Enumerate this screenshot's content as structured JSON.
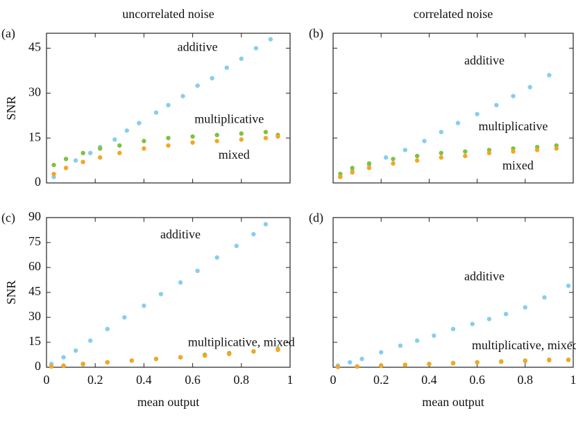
{
  "chart_data": [
    {
      "type": "scatter",
      "label": "(a)",
      "title": "uncorrelated noise",
      "ylabel": "SNR",
      "xlim": [
        0,
        1
      ],
      "ylim": [
        0,
        50
      ],
      "xticks": [
        0,
        0.2,
        0.4,
        0.6,
        0.8,
        1
      ],
      "yticks": [
        0,
        15,
        30,
        45
      ],
      "show_xtick_labels": false,
      "show_ytick_labels": true,
      "series": [
        {
          "name": "additive",
          "color": "#87ceeb",
          "x": [
            0.03,
            0.08,
            0.12,
            0.18,
            0.22,
            0.28,
            0.33,
            0.38,
            0.45,
            0.5,
            0.56,
            0.62,
            0.68,
            0.74,
            0.8,
            0.86,
            0.92
          ],
          "values": [
            2,
            5,
            7.5,
            10,
            12,
            14.5,
            17.5,
            20,
            23.5,
            26,
            29,
            32.5,
            35,
            38.5,
            41.5,
            45,
            48
          ]
        },
        {
          "name": "multiplicative",
          "color": "#7dc242",
          "x": [
            0.03,
            0.08,
            0.15,
            0.22,
            0.3,
            0.4,
            0.5,
            0.6,
            0.7,
            0.8,
            0.9,
            0.95
          ],
          "values": [
            6,
            8,
            10,
            11.5,
            12.5,
            14,
            15,
            15.5,
            16,
            16.5,
            17,
            16
          ]
        },
        {
          "name": "mixed",
          "color": "#f5a623",
          "x": [
            0.03,
            0.08,
            0.15,
            0.22,
            0.3,
            0.4,
            0.5,
            0.6,
            0.7,
            0.8,
            0.9,
            0.95
          ],
          "values": [
            3,
            5,
            7,
            8.5,
            10,
            11.5,
            12.5,
            13.5,
            14,
            14.5,
            15,
            15.5
          ]
        }
      ]
    },
    {
      "type": "scatter",
      "label": "(b)",
      "title": "correlated noise",
      "xlim": [
        0,
        1
      ],
      "ylim": [
        0,
        50
      ],
      "xticks": [
        0,
        0.2,
        0.4,
        0.6,
        0.8,
        1
      ],
      "yticks": [
        0,
        15,
        30,
        45
      ],
      "show_xtick_labels": false,
      "show_ytick_labels": false,
      "series": [
        {
          "name": "additive",
          "color": "#87ceeb",
          "x": [
            0.03,
            0.08,
            0.15,
            0.22,
            0.3,
            0.38,
            0.45,
            0.52,
            0.6,
            0.68,
            0.75,
            0.82,
            0.9
          ],
          "values": [
            2,
            4,
            6,
            8.5,
            11,
            14,
            17,
            20,
            23,
            26,
            29,
            32,
            36
          ]
        },
        {
          "name": "multiplicative",
          "color": "#7dc242",
          "x": [
            0.03,
            0.08,
            0.15,
            0.25,
            0.35,
            0.45,
            0.55,
            0.65,
            0.75,
            0.85,
            0.93
          ],
          "values": [
            3,
            5,
            6.5,
            8,
            9,
            10,
            10.5,
            11,
            11.5,
            12,
            12.5
          ]
        },
        {
          "name": "mixed",
          "color": "#f5a623",
          "x": [
            0.03,
            0.08,
            0.15,
            0.25,
            0.35,
            0.45,
            0.55,
            0.65,
            0.75,
            0.85,
            0.93
          ],
          "values": [
            2,
            3.5,
            5,
            6.5,
            7.5,
            8.5,
            9,
            10,
            10.5,
            11,
            11.5
          ]
        }
      ]
    },
    {
      "type": "scatter",
      "label": "(c)",
      "ylabel": "SNR",
      "xlabel": "mean output",
      "xlim": [
        0,
        1
      ],
      "ylim": [
        0,
        90
      ],
      "xticks": [
        0,
        0.2,
        0.4,
        0.6,
        0.8,
        1
      ],
      "yticks": [
        0,
        15,
        30,
        45,
        60,
        75,
        90
      ],
      "show_xtick_labels": true,
      "show_ytick_labels": true,
      "annotations": [
        "multiplicative, mixed"
      ],
      "series": [
        {
          "name": "additive",
          "color": "#87ceeb",
          "x": [
            0.02,
            0.07,
            0.12,
            0.18,
            0.25,
            0.32,
            0.4,
            0.47,
            0.55,
            0.62,
            0.7,
            0.78,
            0.85,
            0.9
          ],
          "values": [
            2,
            6,
            10,
            16,
            23,
            30,
            37,
            44,
            51,
            58,
            66,
            73,
            80,
            86
          ]
        },
        {
          "color": "#7dc242",
          "x": [
            0.02,
            0.07,
            0.15,
            0.25,
            0.35,
            0.45,
            0.55,
            0.65,
            0.75,
            0.85,
            0.95
          ],
          "values": [
            0.5,
            1,
            2,
            3,
            4,
            5,
            6,
            7.5,
            8.5,
            9.5,
            11
          ]
        },
        {
          "color": "#f5a623",
          "x": [
            0.02,
            0.07,
            0.15,
            0.25,
            0.35,
            0.45,
            0.55,
            0.65,
            0.75,
            0.85,
            0.95
          ],
          "values": [
            0.5,
            1,
            1.8,
            3,
            4,
            5,
            6,
            7,
            8,
            9.5,
            10.5
          ]
        }
      ]
    },
    {
      "type": "scatter",
      "label": "(d)",
      "xlabel": "mean output",
      "xlim": [
        0,
        1
      ],
      "ylim": [
        0,
        90
      ],
      "xticks": [
        0,
        0.2,
        0.4,
        0.6,
        0.8,
        1
      ],
      "yticks": [
        0,
        15,
        30,
        45,
        60,
        75,
        90
      ],
      "show_xtick_labels": true,
      "show_ytick_labels": false,
      "annotations": [
        "multiplicative, mixed"
      ],
      "series": [
        {
          "name": "additive",
          "color": "#87ceeb",
          "x": [
            0.02,
            0.07,
            0.12,
            0.2,
            0.28,
            0.35,
            0.42,
            0.5,
            0.58,
            0.65,
            0.72,
            0.8,
            0.88,
            0.98
          ],
          "values": [
            1,
            3,
            5,
            9,
            13,
            16,
            19,
            23,
            26,
            29,
            32,
            36,
            42,
            49
          ]
        },
        {
          "color": "#7dc242",
          "x": [
            0.02,
            0.1,
            0.2,
            0.3,
            0.4,
            0.5,
            0.6,
            0.7,
            0.8,
            0.9,
            0.98
          ],
          "values": [
            0.2,
            0.5,
            1,
            1.5,
            2,
            2.5,
            3,
            3.5,
            4,
            4.5,
            4.5
          ]
        },
        {
          "color": "#f5a623",
          "x": [
            0.02,
            0.1,
            0.2,
            0.3,
            0.4,
            0.5,
            0.6,
            0.7,
            0.8,
            0.9,
            0.98
          ],
          "values": [
            0.2,
            0.5,
            1,
            1.4,
            1.9,
            2.4,
            2.9,
            3.3,
            3.8,
            4.2,
            4.4
          ]
        }
      ]
    }
  ]
}
